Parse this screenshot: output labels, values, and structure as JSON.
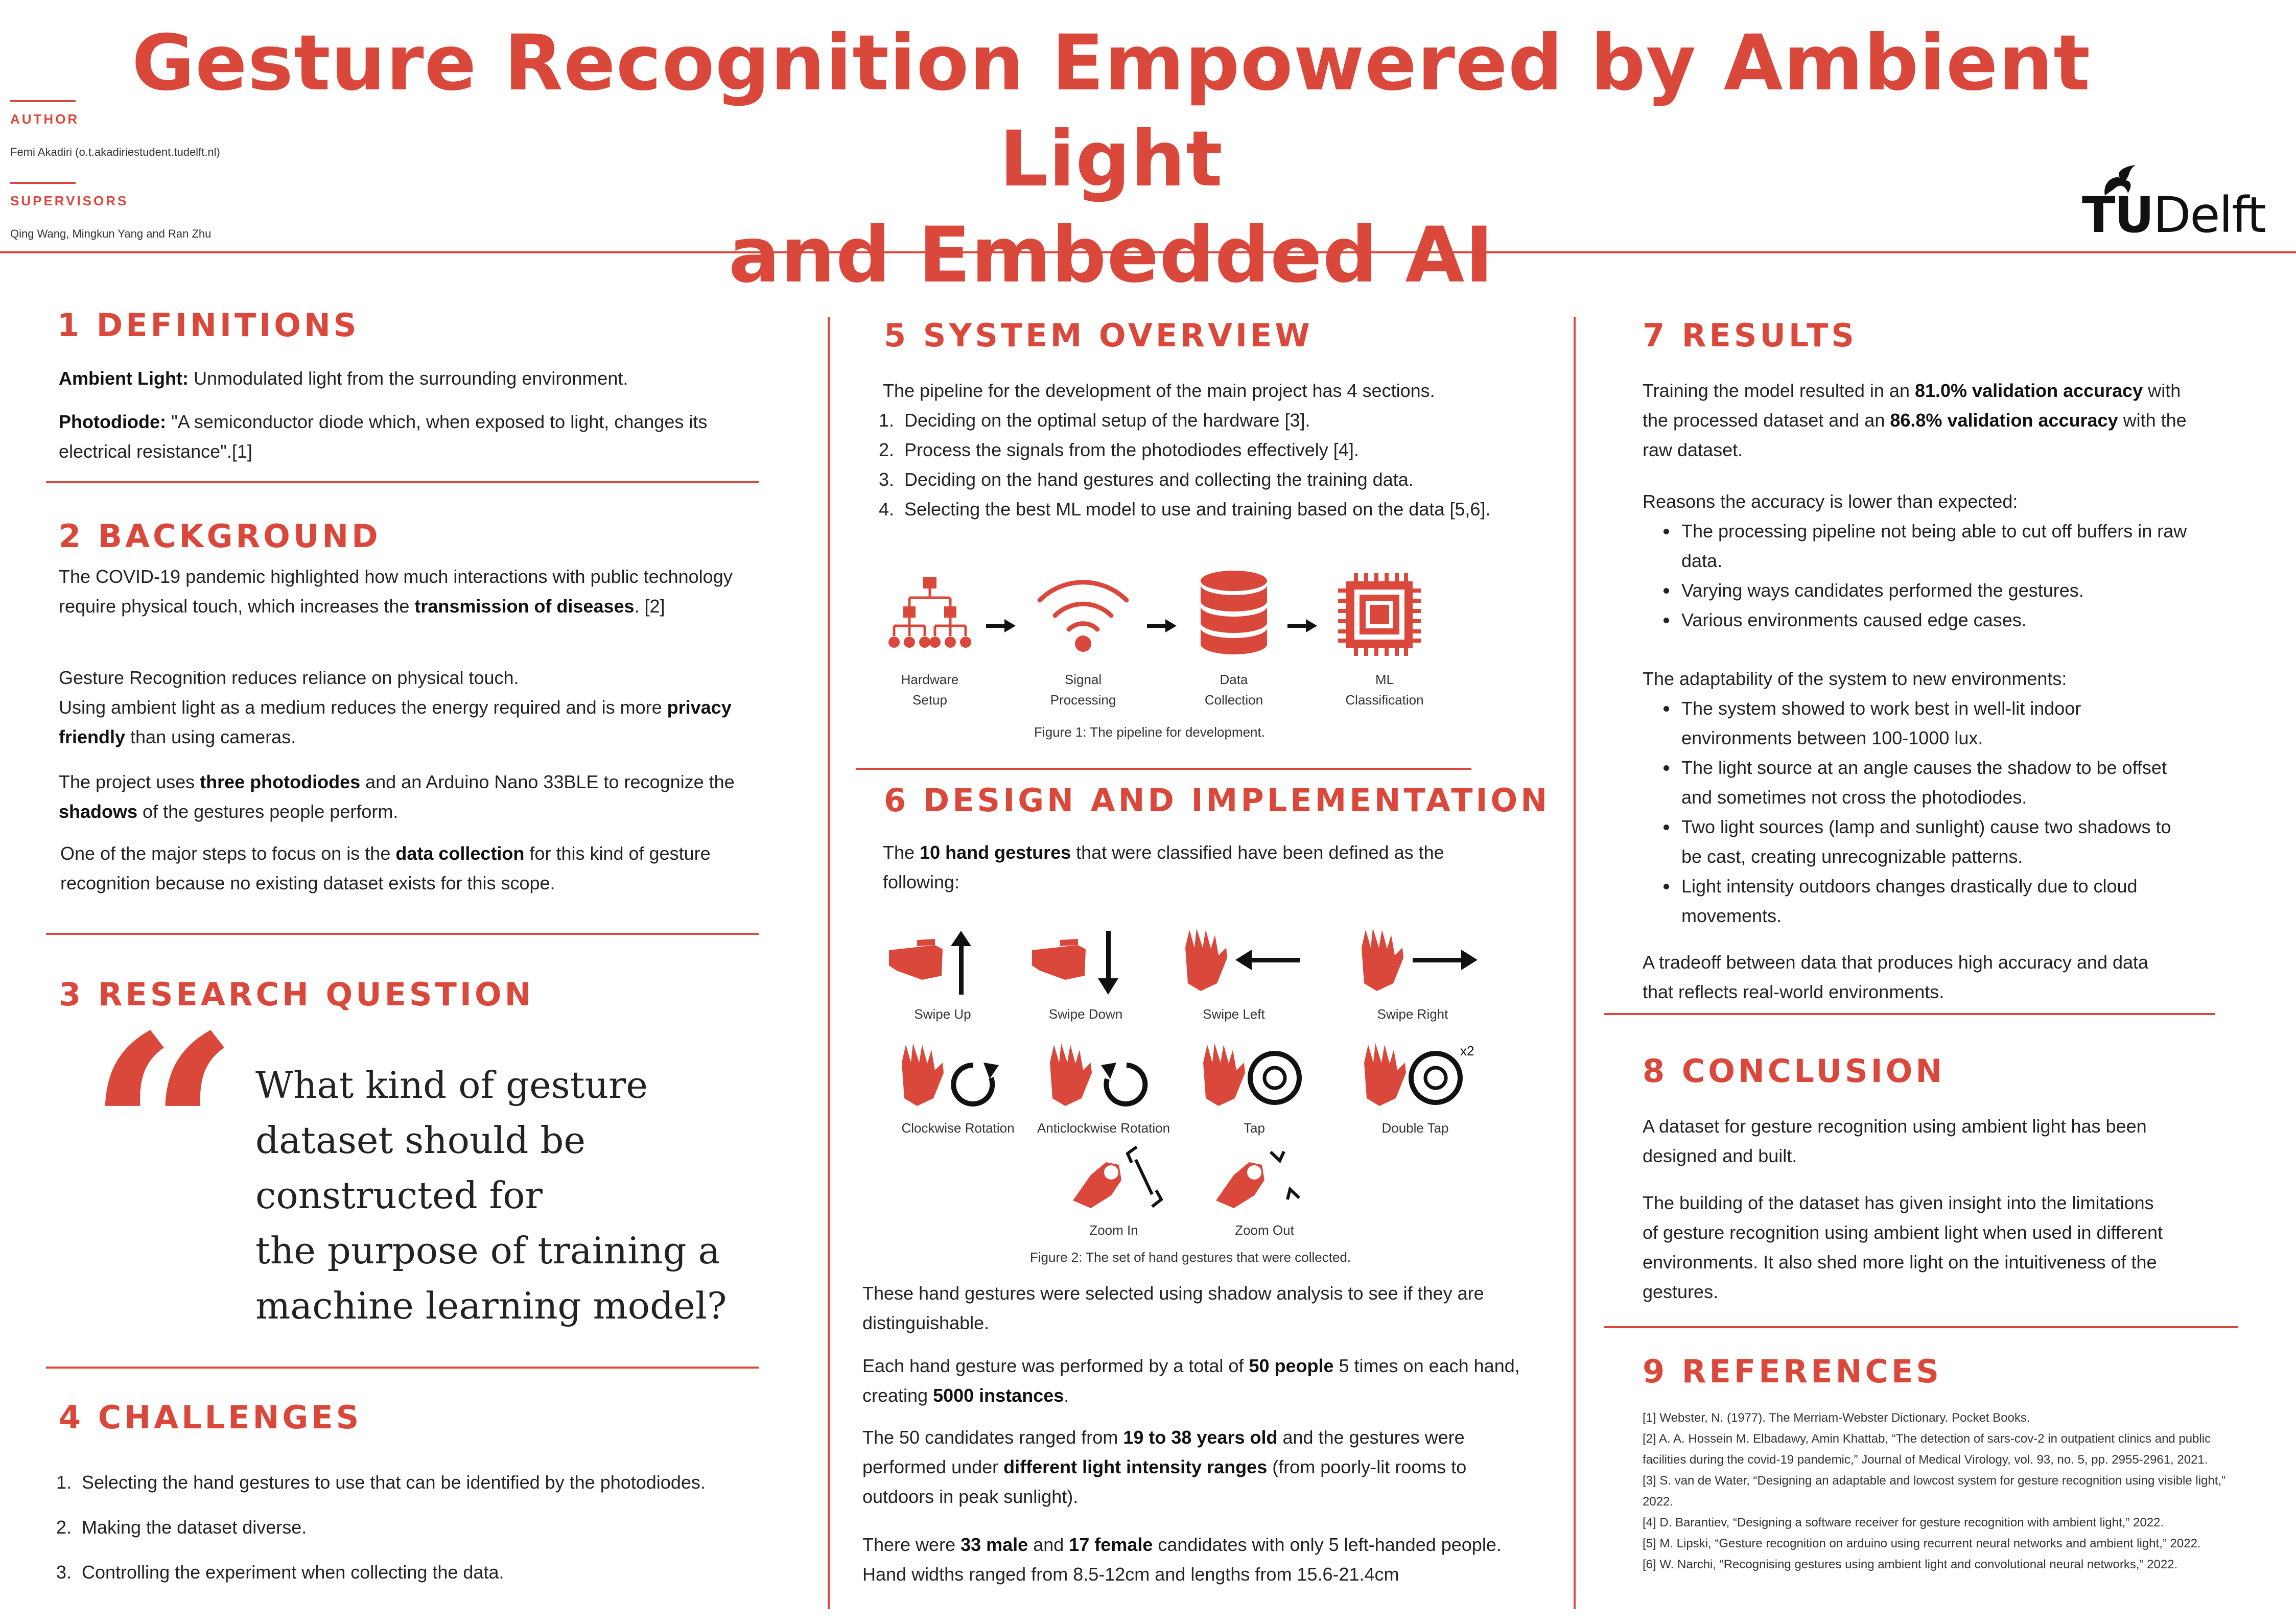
{
  "header": {
    "title_line1": "Gesture Recognition Empowered by Ambient Light",
    "title_line2": "and Embedded AI",
    "author_label": "AUTHOR",
    "author": "Femi Akadiri (o.t.akadiriestudent.tudelft.nl)",
    "supervisors_label": "SUPERVISORS",
    "supervisors": "Qing Wang, Mingkun Yang and Ran Zhu",
    "logo_tu": "TU",
    "logo_delft": "Delft"
  },
  "s1": {
    "title": "1 DEFINITIONS",
    "d1_term": "Ambient Light:",
    "d1_text": " Unmodulated light from the surrounding environment.",
    "d2_term": "Photodiode:",
    "d2_text": " \"A semiconductor diode which, when exposed to light, changes its electrical resistance\".[1]"
  },
  "s2": {
    "title": "2 BACKGROUND",
    "p1a": "The COVID-19 pandemic highlighted how much interactions with public technology require physical touch, which increases the ",
    "p1b": "transmission of diseases",
    "p1c": ". [2]",
    "p2a": "Gesture Recognition reduces reliance on physical touch.",
    "p2b": "Using ambient light as a medium reduces the energy required and is more ",
    "p2c": "privacy friendly",
    "p2d": " than using cameras.",
    "p3a": "The project uses ",
    "p3b": "three photodiodes",
    "p3c": " and an Arduino Nano 33BLE to recognize the ",
    "p3d": "shadows",
    "p3e": " of the gestures people perform.",
    "p4a": "One of the major steps to focus on is the ",
    "p4b": "data collection",
    "p4c": " for this kind of gesture recognition because no existing dataset exists for this scope."
  },
  "s3": {
    "title": "3 RESEARCH QUESTION",
    "quote_mark": "“",
    "q1": "What kind of gesture",
    "q2": "dataset should be",
    "q3": "constructed for",
    "q4": "the purpose of training a",
    "q5": "machine learning model?"
  },
  "s4": {
    "title": "4 CHALLENGES",
    "items": [
      "Selecting the hand gestures to use that can be identified by the photodiodes.",
      "Making the dataset diverse.",
      "Controlling the experiment when collecting the data."
    ]
  },
  "s5": {
    "title": "5 SYSTEM OVERVIEW",
    "intro": "The pipeline for the development of the main project has 4 sections.",
    "items": [
      "Deciding on the optimal setup of the hardware [3].",
      "Process the signals from the photodiodes effectively [4].",
      "Deciding on the hand gestures and collecting the training data.",
      "Selecting the best ML model to use and training based on the data [5,6]."
    ],
    "pipeline": [
      {
        "l1": "Hardware",
        "l2": "Setup",
        "icon": "hierarchy-icon"
      },
      {
        "l1": "Signal",
        "l2": "Processing",
        "icon": "wifi-signal-icon"
      },
      {
        "l1": "Data",
        "l2": "Collection",
        "icon": "database-icon"
      },
      {
        "l1": "ML",
        "l2": "Classification",
        "icon": "chip-icon"
      }
    ],
    "fig1": "Figure 1: The pipeline for development."
  },
  "s6": {
    "title": "6 DESIGN AND IMPLEMENTATION",
    "p1a": "The ",
    "p1b": "10 hand gestures",
    "p1c": " that were classified have been defined as the following:",
    "gestures": [
      "Swipe Up",
      "Swipe Down",
      "Swipe Left",
      "Swipe Right",
      "Clockwise Rotation",
      "Anticlockwise Rotation",
      "Tap",
      "Double Tap",
      "Zoom In",
      "Zoom Out"
    ],
    "x2": "x2",
    "fig2": "Figure 2: The set of hand gestures that were collected.",
    "p2": "These hand gestures were selected using shadow analysis to see if they are distinguishable.",
    "p3a": "Each hand gesture was performed by a total of ",
    "p3b": "50 people",
    "p3c": " 5 times on each hand, creating ",
    "p3d": "5000 instances",
    "p3e": ".",
    "p4a": "The 50 candidates ranged from ",
    "p4b": "19 to 38 years old",
    "p4c": " and the gestures were performed under ",
    "p4d": "different light intensity ranges",
    "p4e": " (from poorly-lit rooms to outdoors in peak sunlight).",
    "p5a": "There were ",
    "p5b": "33 male",
    "p5c": " and ",
    "p5d": "17 female",
    "p5e": " candidates with only 5 left-handed people. Hand widths ranged from 8.5-12cm and lengths from 15.6-21.4cm"
  },
  "s7": {
    "title": "7 RESULTS",
    "p1a": "Training the model resulted in an ",
    "p1b": "81.0% validation accuracy",
    "p1c": " with the processed dataset and an ",
    "p1d": "86.8% validation accuracy",
    "p1e": " with the raw dataset.",
    "reasons_intro": "Reasons the accuracy is lower than expected:",
    "reasons": [
      "The processing pipeline not being able to cut off buffers in raw data.",
      "Varying ways candidates performed the gestures.",
      "Various environments caused edge cases."
    ],
    "adapt_intro": "The adaptability of the system to new environments:",
    "adapt": [
      "The system showed to work best in well-lit indoor environments between 100-1000 lux.",
      "The light source at an angle causes the shadow to be offset and sometimes not cross the photodiodes.",
      "Two light sources (lamp and sunlight) cause two shadows to be cast, creating unrecognizable patterns.",
      "Light intensity outdoors changes drastically due to cloud movements."
    ],
    "tradeoff": "A tradeoff between data that produces high accuracy and data that reflects real-world environments."
  },
  "s8": {
    "title": "8 CONCLUSION",
    "p1": "A dataset for gesture recognition using ambient light has been designed and built.",
    "p2": "The building of the dataset has given insight into the limitations of gesture recognition using ambient light when used in different environments. It also shed more light on the intuitiveness of the gestures."
  },
  "s9": {
    "title": "9 REFERENCES",
    "refs": [
      "[1] Webster, N. (1977). The Merriam-Webster Dictionary. Pocket Books.",
      "[2] A. A. Hossein M. Elbadawy, Amin Khattab, “The detection of sars-cov-2 in outpatient clinics and public facilities during the covid-19 pandemic,” Journal of Medical Virology, vol. 93, no. 5, pp. 2955-2961, 2021.",
      "[3] S. van de Water, “Designing an adaptable and lowcost system for gesture recognition using visible light,” 2022.",
      "[4] D. Barantiev, “Designing a software receiver for gesture recognition with ambient light,” 2022.",
      "[5] M. Lipski, “Gesture recognition on arduino using recurrent neural networks and ambient light,” 2022.",
      "[6] W. Narchi, “Recognising gestures using ambient light and convolutional neural networks,” 2022."
    ]
  },
  "colors": {
    "accent": "#d9483b",
    "text": "#222222"
  }
}
